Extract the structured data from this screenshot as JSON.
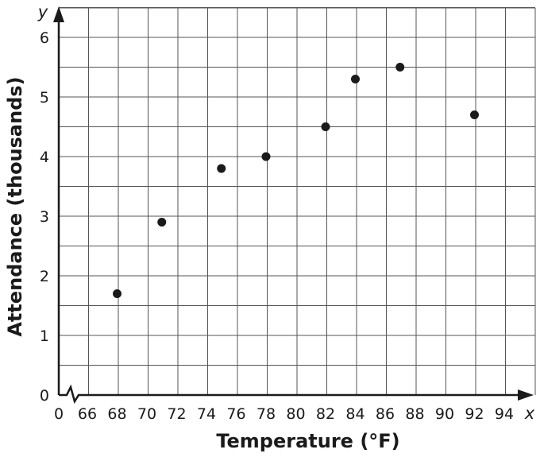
{
  "chart_data": {
    "type": "scatter",
    "xlabel": "Temperature (°F)",
    "ylabel": "Attendance (thousands)",
    "x_axis_var": "x",
    "y_axis_var": "y",
    "x_ticks": [
      "0",
      "66",
      "68",
      "70",
      "72",
      "74",
      "76",
      "78",
      "80",
      "82",
      "84",
      "86",
      "88",
      "90",
      "92",
      "94"
    ],
    "y_ticks": [
      "0",
      "1",
      "2",
      "3",
      "4",
      "5",
      "6"
    ],
    "xlim": [
      65,
      95
    ],
    "ylim": [
      0,
      6
    ],
    "x_axis_break": true,
    "grid": true,
    "series": [
      {
        "points": [
          {
            "x": 68,
            "y": 1.7
          },
          {
            "x": 71,
            "y": 2.9
          },
          {
            "x": 75,
            "y": 3.8
          },
          {
            "x": 78,
            "y": 4.0
          },
          {
            "x": 82,
            "y": 4.5
          },
          {
            "x": 84,
            "y": 5.3
          },
          {
            "x": 87,
            "y": 5.5
          },
          {
            "x": 92,
            "y": 4.7
          }
        ]
      }
    ]
  }
}
